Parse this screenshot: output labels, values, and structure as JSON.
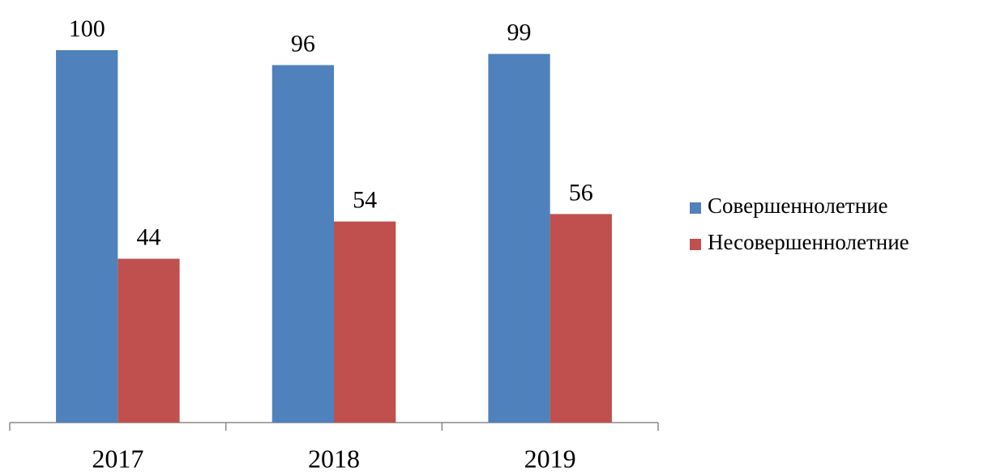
{
  "chart_data": {
    "type": "bar",
    "categories": [
      "2017",
      "2018",
      "2019"
    ],
    "series": [
      {
        "name": "Совершеннолетние",
        "color": "#4f81bd",
        "values": [
          100,
          96,
          99
        ]
      },
      {
        "name": "Несовершеннолетние",
        "color": "#c0504d",
        "values": [
          44,
          54,
          56
        ]
      }
    ],
    "ylim": [
      0,
      100
    ],
    "legend": "right"
  }
}
